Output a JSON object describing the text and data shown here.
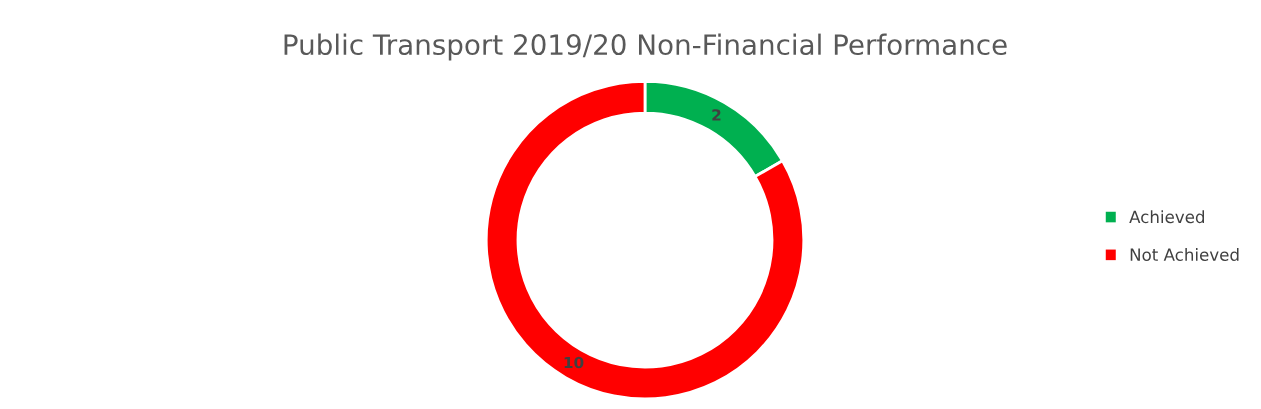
{
  "chart_data": {
    "type": "donut",
    "title": "Public Transport 2019/20 Non-Financial Performance",
    "categories": [
      "Achieved",
      "Not Achieved"
    ],
    "values": [
      2,
      10
    ],
    "colors": [
      "#00b050",
      "#ff0000"
    ],
    "data_labels": true,
    "legend": "right"
  }
}
